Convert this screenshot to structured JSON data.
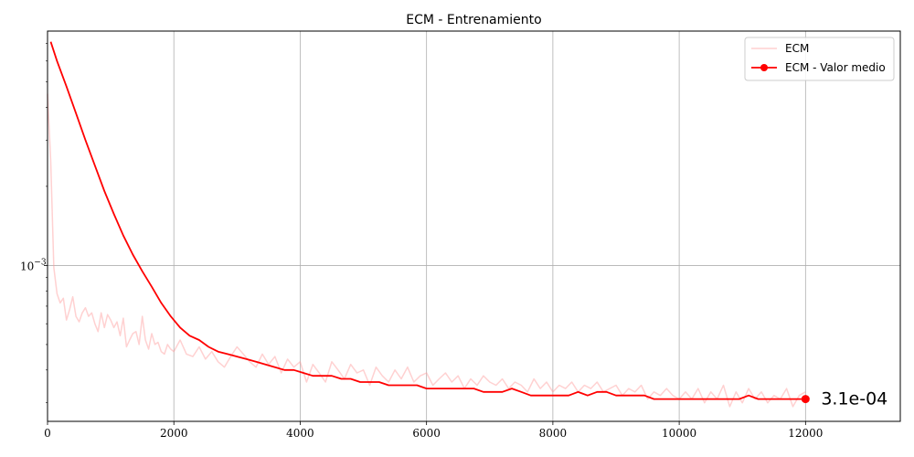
{
  "chart_data": {
    "type": "line",
    "title": "ECM - Entrenamiento",
    "xlabel": "",
    "ylabel": "",
    "xlim": [
      0,
      13500
    ],
    "ylim": [
      0.000255,
      0.0078
    ],
    "yscale": "log",
    "grid": true,
    "legend_position": "top-right",
    "x_ticks": [
      0,
      2000,
      4000,
      6000,
      8000,
      10000,
      12000
    ],
    "x_tick_labels": [
      "0",
      "2000",
      "4000",
      "6000",
      "8000",
      "10000",
      "12000"
    ],
    "y_major_ticks": [
      0.001
    ],
    "y_major_tick_labels": [
      "10^{-3}"
    ],
    "y_major_label": {
      "base": "10",
      "exp": "−3"
    },
    "y_minor_ticks": [
      0.0003,
      0.0004,
      0.0005,
      0.0006,
      0.0007,
      0.0008,
      0.0009,
      0.002,
      0.003,
      0.004,
      0.005,
      0.006,
      0.007
    ],
    "annotation": {
      "text": "3.1e-04",
      "x": 12000,
      "y": 0.00031
    },
    "series": [
      {
        "name": "ECM",
        "color": "#ff9999",
        "opacity": 0.45,
        "marker": "none",
        "x": [
          0,
          50,
          100,
          150,
          200,
          250,
          300,
          350,
          400,
          450,
          500,
          550,
          600,
          650,
          700,
          750,
          800,
          850,
          900,
          950,
          1000,
          1050,
          1100,
          1150,
          1200,
          1250,
          1300,
          1350,
          1400,
          1450,
          1500,
          1550,
          1600,
          1650,
          1700,
          1750,
          1800,
          1850,
          1900,
          1950,
          2000,
          2100,
          2200,
          2300,
          2400,
          2500,
          2600,
          2700,
          2800,
          2900,
          3000,
          3100,
          3200,
          3300,
          3400,
          3500,
          3600,
          3700,
          3800,
          3900,
          4000,
          4100,
          4200,
          4300,
          4400,
          4500,
          4600,
          4700,
          4800,
          4900,
          5000,
          5100,
          5200,
          5300,
          5400,
          5500,
          5600,
          5700,
          5800,
          5900,
          6000,
          6100,
          6200,
          6300,
          6400,
          6500,
          6600,
          6700,
          6800,
          6900,
          7000,
          7100,
          7200,
          7300,
          7400,
          7500,
          7600,
          7700,
          7800,
          7900,
          8000,
          8100,
          8200,
          8300,
          8400,
          8500,
          8600,
          8700,
          8800,
          8900,
          9000,
          9100,
          9200,
          9300,
          9400,
          9500,
          9600,
          9700,
          9800,
          9900,
          10000,
          10100,
          10200,
          10300,
          10400,
          10500,
          10600,
          10700,
          10800,
          10900,
          11000,
          11100,
          11200,
          11300,
          11400,
          11500,
          11600,
          11700,
          11800,
          11900,
          12000
        ],
        "y": [
          0.0045,
          0.0025,
          0.00098,
          0.00078,
          0.00072,
          0.00075,
          0.00062,
          0.00068,
          0.00076,
          0.00064,
          0.00061,
          0.00066,
          0.00069,
          0.00064,
          0.00066,
          0.0006,
          0.00056,
          0.00066,
          0.00058,
          0.00065,
          0.00062,
          0.00058,
          0.00061,
          0.00054,
          0.00063,
          0.00049,
          0.00052,
          0.00055,
          0.00056,
          0.0005,
          0.00064,
          0.00052,
          0.00048,
          0.00055,
          0.0005,
          0.00051,
          0.00047,
          0.00046,
          0.0005,
          0.00048,
          0.00047,
          0.00052,
          0.00046,
          0.00045,
          0.00049,
          0.00044,
          0.00047,
          0.00043,
          0.00041,
          0.00045,
          0.00049,
          0.00046,
          0.00043,
          0.00041,
          0.00046,
          0.00042,
          0.00045,
          0.00039,
          0.00044,
          0.00041,
          0.00043,
          0.00036,
          0.00042,
          0.00039,
          0.00036,
          0.00043,
          0.0004,
          0.00037,
          0.00042,
          0.00039,
          0.0004,
          0.00035,
          0.00041,
          0.00038,
          0.00036,
          0.0004,
          0.00037,
          0.00041,
          0.00036,
          0.00038,
          0.00039,
          0.00035,
          0.00037,
          0.00039,
          0.00036,
          0.00038,
          0.00034,
          0.00037,
          0.00035,
          0.00038,
          0.00036,
          0.00035,
          0.00037,
          0.00034,
          0.00036,
          0.00035,
          0.00033,
          0.00037,
          0.00034,
          0.00036,
          0.00033,
          0.00035,
          0.00034,
          0.00036,
          0.00033,
          0.00035,
          0.00034,
          0.00036,
          0.00033,
          0.00034,
          0.00035,
          0.00032,
          0.00034,
          0.00033,
          0.00035,
          0.00031,
          0.00033,
          0.00032,
          0.00034,
          0.00032,
          0.00031,
          0.00033,
          0.00031,
          0.00034,
          0.0003,
          0.00033,
          0.00031,
          0.00035,
          0.00029,
          0.00033,
          0.0003,
          0.00034,
          0.00031,
          0.00033,
          0.0003,
          0.00032,
          0.00031,
          0.00034,
          0.00029,
          0.00032,
          0.00033
        ]
      },
      {
        "name": "ECM - Valor medio",
        "color": "#ff0000",
        "marker": "none",
        "x": [
          50,
          150,
          300,
          450,
          600,
          750,
          900,
          1050,
          1200,
          1350,
          1500,
          1650,
          1800,
          1950,
          2100,
          2250,
          2400,
          2550,
          2700,
          2850,
          3000,
          3150,
          3300,
          3450,
          3600,
          3750,
          3900,
          4050,
          4200,
          4350,
          4500,
          4650,
          4800,
          4950,
          5100,
          5250,
          5400,
          5550,
          5700,
          5850,
          6000,
          6150,
          6300,
          6450,
          6600,
          6750,
          6900,
          7050,
          7200,
          7350,
          7500,
          7650,
          7800,
          7950,
          8100,
          8250,
          8400,
          8550,
          8700,
          8850,
          9000,
          9150,
          9300,
          9450,
          9600,
          9750,
          9900,
          10050,
          10200,
          10350,
          10500,
          10650,
          10800,
          10950,
          11100,
          11250,
          11400,
          11550,
          11700,
          11850,
          12000
        ],
        "y": [
          0.0071,
          0.006,
          0.0048,
          0.0038,
          0.003,
          0.0024,
          0.00192,
          0.00157,
          0.0013,
          0.0011,
          0.00095,
          0.00083,
          0.00072,
          0.00064,
          0.00058,
          0.00054,
          0.00052,
          0.00049,
          0.00047,
          0.00046,
          0.00045,
          0.00044,
          0.00043,
          0.00042,
          0.00041,
          0.0004,
          0.0004,
          0.00039,
          0.00038,
          0.00038,
          0.00038,
          0.00037,
          0.00037,
          0.00036,
          0.00036,
          0.00036,
          0.00035,
          0.00035,
          0.00035,
          0.00035,
          0.00034,
          0.00034,
          0.00034,
          0.00034,
          0.00034,
          0.00034,
          0.00033,
          0.00033,
          0.00033,
          0.00034,
          0.00033,
          0.00032,
          0.00032,
          0.00032,
          0.00032,
          0.00032,
          0.00033,
          0.00032,
          0.00033,
          0.00033,
          0.00032,
          0.00032,
          0.00032,
          0.00032,
          0.00031,
          0.00031,
          0.00031,
          0.00031,
          0.00031,
          0.00031,
          0.00031,
          0.00031,
          0.00031,
          0.00031,
          0.00032,
          0.00031,
          0.00031,
          0.00031,
          0.00031,
          0.00031,
          0.00031
        ],
        "end_marker": "circle"
      }
    ]
  }
}
